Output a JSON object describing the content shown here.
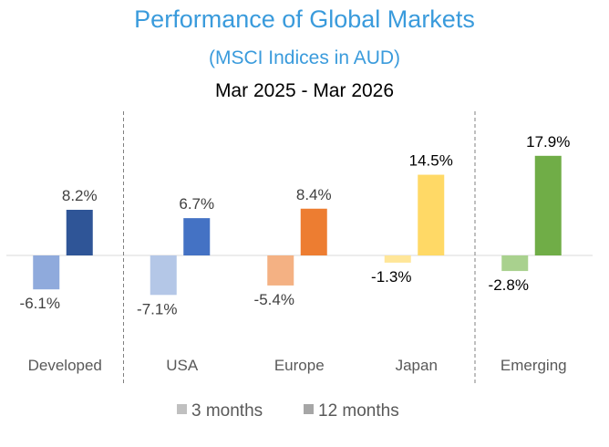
{
  "chart_data": {
    "type": "bar",
    "title": "Performance of Global Markets",
    "subtitle": "(MSCI Indices in AUD)",
    "period": "Mar 2025 - Mar 2026",
    "categories": [
      "Developed",
      "USA",
      "Europe",
      "Japan",
      "Emerging"
    ],
    "series": [
      {
        "name": "3 months",
        "values": [
          -6.1,
          -7.1,
          -5.4,
          -1.3,
          -2.8
        ],
        "labels": [
          "-6.1%",
          "-7.1%",
          "-5.4%",
          "-1.3%",
          "-2.8%"
        ]
      },
      {
        "name": "12 months",
        "values": [
          8.2,
          6.7,
          8.4,
          14.5,
          17.9
        ],
        "labels": [
          "8.2%",
          "6.7%",
          "8.4%",
          "14.5%",
          "17.9%"
        ]
      }
    ],
    "colors": {
      "3 months": [
        "#8FAADC",
        "#B4C7E7",
        "#F4B183",
        "#FFE699",
        "#A9D18E"
      ],
      "12 months": [
        "#2F5597",
        "#4472C4",
        "#ED7D31",
        "#FFD966",
        "#70AD47"
      ],
      "legend_swatch": [
        "#C0C0C0",
        "#A6A6A6"
      ],
      "title": "#3A9BDC"
    },
    "dividers_after": [
      "Developed",
      "Japan"
    ],
    "legend_placement": "bottom",
    "grid": false
  }
}
